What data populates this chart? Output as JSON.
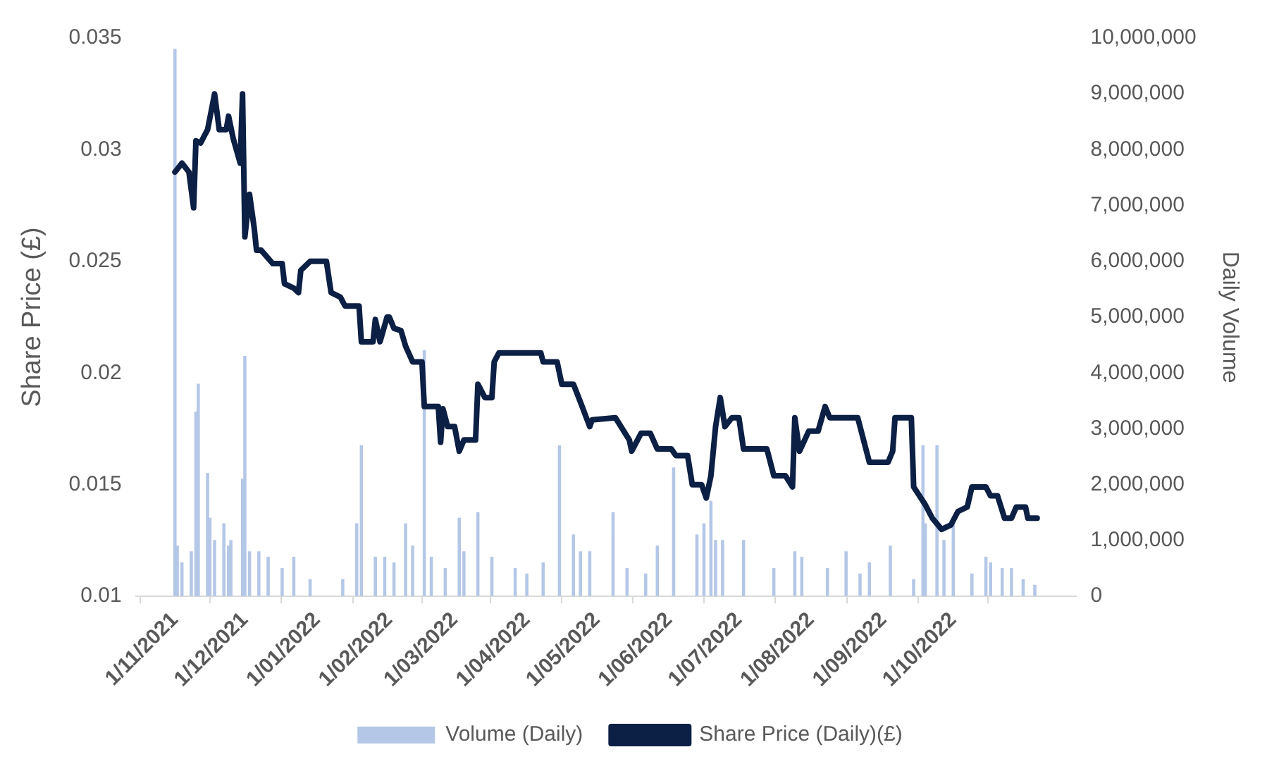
{
  "chart_data": {
    "type": "line",
    "ylabel": "Share Price (£)",
    "y2label": "Daily Volume",
    "legend": "bottom",
    "marker": "none",
    "line_style": "solid",
    "xlim": [
      "2021-11-01",
      "2022-11-06"
    ],
    "xticks": [
      {
        "value": "2021-11-01",
        "label": "1/11/2021"
      },
      {
        "value": "2021-12-01",
        "label": "1/12/2021"
      },
      {
        "value": "2022-01-01",
        "label": "1/01/2022"
      },
      {
        "value": "2022-02-01",
        "label": "1/02/2022"
      },
      {
        "value": "2022-03-01",
        "label": "1/03/2022"
      },
      {
        "value": "2022-04-01",
        "label": "1/04/2022"
      },
      {
        "value": "2022-05-01",
        "label": "1/05/2022"
      },
      {
        "value": "2022-06-01",
        "label": "1/06/2022"
      },
      {
        "value": "2022-07-01",
        "label": "1/07/2022"
      },
      {
        "value": "2022-08-01",
        "label": "1/08/2022"
      },
      {
        "value": "2022-09-01",
        "label": "1/09/2022"
      },
      {
        "value": "2022-10-01",
        "label": "1/10/2022"
      }
    ],
    "ylim": [
      0.01,
      0.035
    ],
    "yticks": [
      0.01,
      0.015,
      0.02,
      0.025,
      0.03,
      0.035
    ],
    "y2lim": [
      0,
      10000000
    ],
    "y2ticks": [
      0,
      {
        "value": 1000000,
        "label": "1,000,000"
      },
      {
        "value": 2000000,
        "label": "2,000,000"
      },
      {
        "value": 3000000,
        "label": "3,000,000"
      },
      {
        "value": 4000000,
        "label": "4,000,000"
      },
      {
        "value": 5000000,
        "label": "5,000,000"
      },
      {
        "value": 6000000,
        "label": "6,000,000"
      },
      {
        "value": 7000000,
        "label": "7,000,000"
      },
      {
        "value": 8000000,
        "label": "8,000,000"
      },
      {
        "value": 9000000,
        "label": "9,000,000"
      },
      {
        "value": 10000000,
        "label": "10,000,000"
      }
    ],
    "series": [
      {
        "name": "Volume (Daily)",
        "type": "bar",
        "axis": "y2",
        "color": "#b4c7e7",
        "x": [
          "2021-11-01",
          "2021-11-02",
          "2021-11-04",
          "2021-11-08",
          "2021-11-10",
          "2021-11-11",
          "2021-11-15",
          "2021-11-16",
          "2021-11-18",
          "2021-11-22",
          "2021-11-24",
          "2021-11-25",
          "2021-11-30",
          "2021-12-01",
          "2021-12-03",
          "2021-12-07",
          "2021-12-11",
          "2021-12-17",
          "2021-12-22",
          "2021-12-29",
          "2022-01-12",
          "2022-01-18",
          "2022-01-20",
          "2022-01-26",
          "2022-01-30",
          "2022-02-03",
          "2022-02-08",
          "2022-02-11",
          "2022-02-16",
          "2022-02-19",
          "2022-02-25",
          "2022-03-03",
          "2022-03-05",
          "2022-03-11",
          "2022-03-17",
          "2022-03-27",
          "2022-04-01",
          "2022-04-08",
          "2022-04-15",
          "2022-04-21",
          "2022-04-24",
          "2022-04-28",
          "2022-05-08",
          "2022-05-14",
          "2022-05-22",
          "2022-05-27",
          "2022-06-03",
          "2022-06-13",
          "2022-06-16",
          "2022-06-19",
          "2022-06-21",
          "2022-06-24",
          "2022-07-03",
          "2022-07-16",
          "2022-07-25",
          "2022-07-28",
          "2022-08-08",
          "2022-08-16",
          "2022-08-22",
          "2022-08-26",
          "2022-09-04",
          "2022-09-14",
          "2022-09-18",
          "2022-09-19",
          "2022-09-24",
          "2022-09-27",
          "2022-10-01",
          "2022-10-09",
          "2022-10-15",
          "2022-10-17",
          "2022-10-22",
          "2022-10-26",
          "2022-10-31",
          "2022-11-05"
        ],
        "values": [
          9800000,
          900000,
          600000,
          800000,
          3300000,
          3800000,
          2200000,
          1400000,
          1000000,
          1300000,
          900000,
          1000000,
          2100000,
          4300000,
          800000,
          800000,
          700000,
          500000,
          700000,
          300000,
          300000,
          1300000,
          2700000,
          700000,
          700000,
          600000,
          1300000,
          900000,
          4400000,
          700000,
          500000,
          1400000,
          800000,
          1500000,
          700000,
          500000,
          400000,
          600000,
          2700000,
          1100000,
          800000,
          800000,
          1500000,
          500000,
          400000,
          900000,
          2300000,
          1100000,
          1300000,
          1700000,
          1000000,
          1000000,
          1000000,
          500000,
          800000,
          700000,
          500000,
          800000,
          400000,
          600000,
          900000,
          300000,
          2700000,
          1300000,
          2700000,
          1000000,
          1400000,
          400000,
          700000,
          600000,
          500000,
          500000,
          300000,
          200000
        ]
      },
      {
        "name": "Share Price (Daily)(£)",
        "color": "#0c1f44",
        "x": [
          "2021-11-01",
          "2021-11-04",
          "2021-11-07",
          "2021-11-09",
          "2021-11-10",
          "2021-11-12",
          "2021-11-15",
          "2021-11-18",
          "2021-11-20",
          "2021-11-23",
          "2021-11-24",
          "2021-11-26",
          "2021-11-29",
          "2021-11-30",
          "2021-12-01",
          "2021-12-03",
          "2021-12-05",
          "2021-12-06",
          "2021-12-08",
          "2021-12-13",
          "2021-12-17",
          "2021-12-18",
          "2021-12-22",
          "2021-12-24",
          "2021-12-25",
          "2021-12-29",
          "2022-01-05",
          "2022-01-07",
          "2022-01-11",
          "2022-01-13",
          "2022-01-19",
          "2022-01-20",
          "2022-01-25",
          "2022-01-26",
          "2022-01-28",
          "2022-01-31",
          "2022-02-01",
          "2022-02-03",
          "2022-02-06",
          "2022-02-08",
          "2022-02-11",
          "2022-02-15",
          "2022-02-16",
          "2022-02-22",
          "2022-02-23",
          "2022-02-24",
          "2022-02-26",
          "2022-03-01",
          "2022-03-03",
          "2022-03-05",
          "2022-03-10",
          "2022-03-11",
          "2022-03-14",
          "2022-03-17",
          "2022-03-18",
          "2022-03-20",
          "2022-04-07",
          "2022-04-08",
          "2022-04-14",
          "2022-04-16",
          "2022-04-21",
          "2022-04-24",
          "2022-04-28",
          "2022-04-29",
          "2022-05-09",
          "2022-05-15",
          "2022-05-16",
          "2022-05-20",
          "2022-05-24",
          "2022-05-27",
          "2022-06-02",
          "2022-06-04",
          "2022-06-09",
          "2022-06-11",
          "2022-06-15",
          "2022-06-17",
          "2022-06-19",
          "2022-06-21",
          "2022-06-23",
          "2022-06-25",
          "2022-06-28",
          "2022-07-01",
          "2022-07-03",
          "2022-07-13",
          "2022-07-16",
          "2022-07-21",
          "2022-07-24",
          "2022-07-25",
          "2022-07-27",
          "2022-07-31",
          "2022-08-04",
          "2022-08-07",
          "2022-08-09",
          "2022-08-21",
          "2022-08-26",
          "2022-09-03",
          "2022-09-05",
          "2022-09-06",
          "2022-09-13",
          "2022-09-14",
          "2022-09-19",
          "2022-09-22",
          "2022-09-26",
          "2022-09-30",
          "2022-10-03",
          "2022-10-07",
          "2022-10-09",
          "2022-10-15",
          "2022-10-17",
          "2022-10-20",
          "2022-10-23",
          "2022-10-26",
          "2022-10-28",
          "2022-11-01",
          "2022-11-02",
          "2022-11-06"
        ],
        "values": [
          0.029,
          0.0294,
          0.029,
          0.0274,
          0.0304,
          0.0303,
          0.0309,
          0.0325,
          0.0309,
          0.0309,
          0.0315,
          0.0305,
          0.0294,
          0.0325,
          0.0261,
          0.028,
          0.0265,
          0.0255,
          0.0255,
          0.0249,
          0.0249,
          0.024,
          0.0238,
          0.0236,
          0.0246,
          0.025,
          0.025,
          0.0236,
          0.0234,
          0.023,
          0.023,
          0.0214,
          0.0214,
          0.0224,
          0.0214,
          0.0225,
          0.0225,
          0.022,
          0.0219,
          0.0212,
          0.0205,
          0.0205,
          0.0185,
          0.0185,
          0.0169,
          0.0184,
          0.0176,
          0.0176,
          0.0165,
          0.017,
          0.017,
          0.0195,
          0.0189,
          0.0189,
          0.0205,
          0.0209,
          0.0209,
          0.0205,
          0.0205,
          0.0195,
          0.0195,
          0.0187,
          0.0176,
          0.0179,
          0.018,
          0.017,
          0.0165,
          0.0173,
          0.0173,
          0.0166,
          0.0166,
          0.0163,
          0.0163,
          0.015,
          0.015,
          0.0144,
          0.0154,
          0.0176,
          0.0189,
          0.0176,
          0.018,
          0.018,
          0.0166,
          0.0166,
          0.0154,
          0.0154,
          0.0149,
          0.018,
          0.0165,
          0.0174,
          0.0174,
          0.0185,
          0.018,
          0.018,
          0.016,
          0.016,
          0.0165,
          0.018,
          0.018,
          0.0149,
          0.0141,
          0.0135,
          0.013,
          0.0132,
          0.0138,
          0.014,
          0.0149,
          0.0149,
          0.0145,
          0.0145,
          0.0135,
          0.0135,
          0.014,
          0.014,
          0.0135,
          0.0135
        ]
      }
    ]
  }
}
